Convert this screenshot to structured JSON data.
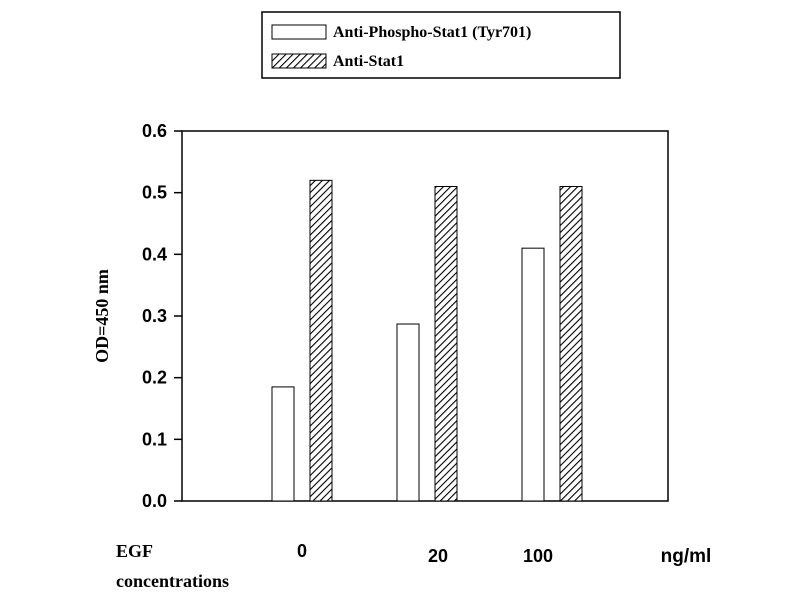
{
  "chart_data": {
    "type": "bar",
    "categories": [
      "0",
      "20",
      "100"
    ],
    "series": [
      {
        "name": "Anti-Phospho-Stat1 (Tyr701)",
        "values": [
          0.185,
          0.287,
          0.41
        ],
        "pattern": "open"
      },
      {
        "name": "Anti-Stat1",
        "values": [
          0.52,
          0.51,
          0.51
        ],
        "pattern": "hatched"
      }
    ],
    "ylabel": "OD=450 nm",
    "ylim": [
      0,
      0.6
    ],
    "yticks": [
      "0.0",
      "0.1",
      "0.2",
      "0.3",
      "0.4",
      "0.5",
      "0.6"
    ],
    "x_caption": [
      "EGF",
      "concentrations"
    ],
    "x_unit": "ng/ml",
    "grid": false,
    "legend_position": "top"
  },
  "colors": {
    "ink": "#000000",
    "fill_open": "#ffffff",
    "hatch_bg": "#ffffff"
  }
}
